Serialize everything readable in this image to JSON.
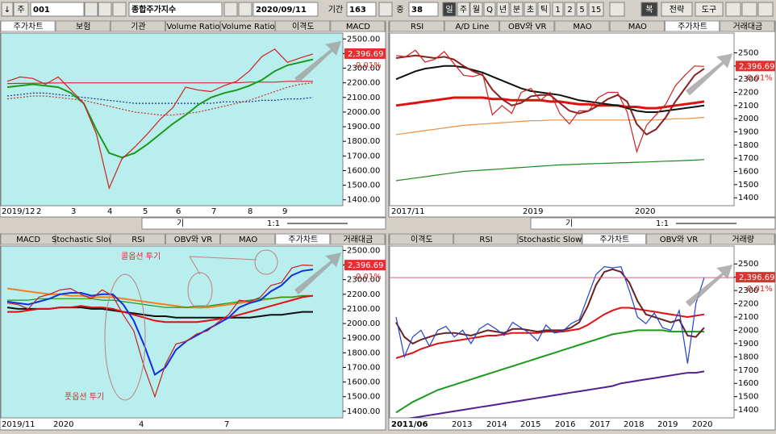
{
  "toolbar": {
    "items": [
      "↓",
      "주",
      "001",
      "종합주가지수",
      "2020/09/11",
      "기간",
      163,
      "중",
      38,
      "일",
      "주",
      "월",
      "Q",
      "년",
      "분",
      "초",
      "틱",
      "1",
      "2",
      "5",
      "15",
      "복",
      "전략",
      "도구"
    ]
  },
  "scroll": {
    "label": "기",
    "zoom": "1:1"
  },
  "panels": [
    {
      "tabs": [
        "주가차트",
        "보험",
        "기관",
        "Volume Ratio",
        "Volume Ratio",
        "이격도",
        "MACD"
      ],
      "ylim": [
        1360,
        2540
      ],
      "yticks": [
        {
          "value": 2500,
          "label": "2500.00"
        },
        {
          "value": 2400,
          "label": "2400.00"
        },
        {
          "value": 2300,
          "label": "2300.00"
        },
        {
          "value": 2200,
          "label": "2200.00"
        },
        {
          "value": 2100,
          "label": "2100.00"
        },
        {
          "value": 2000,
          "label": "2000.00"
        },
        {
          "value": 1900,
          "label": "1900.00"
        },
        {
          "value": 1800,
          "label": "1800.00"
        },
        {
          "value": 1700,
          "label": "1700.00"
        },
        {
          "value": 1600,
          "label": "1600.00"
        },
        {
          "value": 1500,
          "label": "1500.00"
        },
        {
          "value": 1400,
          "label": "1400.00"
        }
      ],
      "xlabels": [
        "2019/12",
        "2",
        "3",
        "4",
        "5",
        "6",
        "7",
        "8",
        "9"
      ],
      "price_label": "2,396.69",
      "change_label": "0.01%",
      "lines": [
        {
          "color": "#e02020",
          "values": [
            2195,
            2196,
            2197,
            2198,
            2199,
            2200,
            2200,
            2200,
            2200,
            2200,
            2200,
            2200,
            2200,
            2200,
            2200,
            2200,
            2200,
            2200,
            2200,
            2205,
            2205,
            2205,
            2210,
            2210,
            2210
          ]
        },
        {
          "color": "#203090",
          "dotted": true,
          "values": [
            2110,
            2120,
            2130,
            2130,
            2120,
            2110,
            2100,
            2090,
            2080,
            2070,
            2060,
            2060,
            2060,
            2060,
            2060,
            2060,
            2060,
            2070,
            2070,
            2070,
            2080,
            2080,
            2090,
            2090,
            2100
          ]
        },
        {
          "color": "#c03030",
          "dotted": true,
          "values": [
            2090,
            2100,
            2110,
            2110,
            2100,
            2090,
            2080,
            2060,
            2040,
            2020,
            2000,
            1990,
            1980,
            1980,
            1990,
            2000,
            2020,
            2040,
            2060,
            2080,
            2110,
            2140,
            2170,
            2190,
            2200
          ]
        },
        {
          "color": "#1a9a1a",
          "width": 2,
          "values": [
            2170,
            2180,
            2190,
            2180,
            2170,
            2130,
            2060,
            1880,
            1720,
            1690,
            1720,
            1780,
            1850,
            1920,
            1980,
            2050,
            2100,
            2130,
            2150,
            2180,
            2220,
            2280,
            2320,
            2340,
            2360
          ]
        },
        {
          "color": "#d02020",
          "values": [
            2210,
            2240,
            2230,
            2190,
            2240,
            2150,
            2060,
            1850,
            1480,
            1680,
            1760,
            1850,
            1950,
            2030,
            2170,
            2150,
            2140,
            2180,
            2210,
            2280,
            2380,
            2430,
            2340,
            2370,
            2397
          ]
        }
      ]
    },
    {
      "tabs": [
        "RSI",
        "A/D Line",
        "OBV와 VR",
        "MAO",
        "MAO",
        "주가차트",
        "거래대금"
      ],
      "ylim": [
        1340,
        2650
      ],
      "yticks": [
        2500,
        2400,
        2300,
        2200,
        2100,
        2000,
        1900,
        1800,
        1700,
        1600,
        1500,
        1400
      ],
      "xlabels": [
        "2017/11",
        "2019",
        "2020"
      ],
      "price_label": "2,396.69",
      "change_label": "0.01%",
      "lines": [
        {
          "color": "#1a8a1a",
          "values": [
            1530,
            1540,
            1550,
            1560,
            1570,
            1580,
            1590,
            1600,
            1605,
            1610,
            1615,
            1620,
            1625,
            1630,
            1635,
            1640,
            1645,
            1650,
            1652,
            1655,
            1658,
            1660,
            1662,
            1665,
            1667,
            1670,
            1672,
            1675,
            1678,
            1680,
            1683,
            1686,
            1690
          ]
        },
        {
          "color": "#f09040",
          "values": [
            1880,
            1890,
            1900,
            1910,
            1920,
            1930,
            1940,
            1950,
            1955,
            1960,
            1965,
            1970,
            1975,
            1980,
            1985,
            1985,
            1990,
            1990,
            1990,
            1990,
            1990,
            1990,
            1990,
            1990,
            1990,
            1990,
            1990,
            1990,
            1995,
            2000,
            2000,
            2005,
            2010
          ]
        },
        {
          "color": "#e01010",
          "width": 3,
          "values": [
            2100,
            2110,
            2120,
            2130,
            2140,
            2150,
            2160,
            2160,
            2160,
            2160,
            2150,
            2150,
            2140,
            2140,
            2140,
            2140,
            2130,
            2130,
            2120,
            2110,
            2110,
            2100,
            2100,
            2100,
            2090,
            2090,
            2080,
            2080,
            2090,
            2100,
            2110,
            2120,
            2130
          ]
        },
        {
          "color": "#101010",
          "width": 2,
          "values": [
            2300,
            2330,
            2360,
            2380,
            2390,
            2400,
            2400,
            2390,
            2370,
            2350,
            2320,
            2290,
            2260,
            2230,
            2210,
            2200,
            2190,
            2180,
            2160,
            2140,
            2130,
            2120,
            2110,
            2100,
            2080,
            2060,
            2050,
            2050,
            2060,
            2070,
            2080,
            2090,
            2100
          ]
        },
        {
          "color": "#8a2020",
          "width": 2,
          "values": [
            2460,
            2470,
            2480,
            2470,
            2460,
            2470,
            2450,
            2400,
            2360,
            2330,
            2220,
            2150,
            2100,
            2120,
            2170,
            2180,
            2180,
            2120,
            2060,
            2040,
            2060,
            2100,
            2150,
            2180,
            2130,
            1960,
            1880,
            1920,
            2010,
            2130,
            2230,
            2330,
            2380
          ]
        },
        {
          "color": "#d02020",
          "values": [
            2480,
            2470,
            2520,
            2430,
            2450,
            2510,
            2420,
            2330,
            2320,
            2340,
            2030,
            2100,
            2040,
            2200,
            2230,
            2140,
            2200,
            2040,
            1960,
            2060,
            2060,
            2160,
            2200,
            2200,
            2050,
            1750,
            1950,
            2030,
            2110,
            2250,
            2330,
            2400,
            2397
          ]
        }
      ]
    },
    {
      "tabs": [
        "MACD",
        "Stochastic Slow",
        "RSI",
        "OBV와 VR",
        "MAO",
        "주가차트",
        "거래대금"
      ],
      "ylim": [
        1355,
        2530
      ],
      "yticks": [
        {
          "value": 2500,
          "label": "2500.00"
        },
        {
          "value": 2400,
          "label": "2400.00"
        },
        {
          "value": 2300,
          "label": "2300.00"
        },
        {
          "value": 2200,
          "label": "2200.00"
        },
        {
          "value": 2100,
          "label": "2100.00"
        },
        {
          "value": 2000,
          "label": "2000.00"
        },
        {
          "value": 1900,
          "label": "1900.00"
        },
        {
          "value": 1800,
          "label": "1800.00"
        },
        {
          "value": 1700,
          "label": "1700.00"
        },
        {
          "value": 1600,
          "label": "1600.00"
        },
        {
          "value": 1500,
          "label": "1500.00"
        },
        {
          "value": 1400,
          "label": "1400.00"
        }
      ],
      "xlabels": [
        "2019/11",
        "2020",
        "4",
        "7"
      ],
      "price_label": "2,396.69",
      "change_label": "0.01%",
      "annotations": [
        "콜옵션 투기",
        "풋옵션 투기"
      ],
      "lines": [
        {
          "color": "#f08020",
          "width": 2,
          "values": [
            2240,
            2230,
            2220,
            2210,
            2200,
            2200,
            2190,
            2190,
            2180,
            2180,
            2180,
            2170,
            2160,
            2150,
            2140,
            2130,
            2120,
            2110,
            2110,
            2110,
            2120,
            2130,
            2140,
            2150,
            2160,
            2170,
            2180,
            2180,
            2190,
            2190
          ]
        },
        {
          "color": "#1a9a1a",
          "values": [
            2160,
            2160,
            2160,
            2170,
            2170,
            2170,
            2170,
            2170,
            2170,
            2160,
            2160,
            2150,
            2140,
            2130,
            2120,
            2110,
            2110,
            2110,
            2120,
            2120,
            2130,
            2140,
            2150,
            2160,
            2170,
            2170,
            2180,
            2180,
            2190,
            2190
          ]
        },
        {
          "color": "#101010",
          "width": 2,
          "values": [
            2110,
            2100,
            2100,
            2100,
            2100,
            2110,
            2110,
            2110,
            2100,
            2100,
            2090,
            2080,
            2070,
            2060,
            2050,
            2050,
            2040,
            2040,
            2040,
            2040,
            2040,
            2040,
            2040,
            2040,
            2050,
            2060,
            2060,
            2070,
            2080,
            2080
          ]
        },
        {
          "color": "#e01010",
          "width": 2,
          "values": [
            2080,
            2080,
            2090,
            2100,
            2100,
            2110,
            2110,
            2120,
            2110,
            2110,
            2100,
            2080,
            2060,
            2040,
            2020,
            2010,
            2010,
            2010,
            2010,
            2020,
            2030,
            2040,
            2060,
            2080,
            2100,
            2120,
            2140,
            2160,
            2180,
            2190
          ]
        },
        {
          "color": "#1030e0",
          "width": 2,
          "values": [
            2150,
            2140,
            2130,
            2150,
            2170,
            2200,
            2210,
            2210,
            2190,
            2200,
            2200,
            2130,
            2020,
            1850,
            1650,
            1700,
            1820,
            1880,
            1920,
            1960,
            2000,
            2040,
            2110,
            2140,
            2160,
            2220,
            2260,
            2330,
            2360,
            2370
          ]
        },
        {
          "color": "#c02020",
          "values": [
            2140,
            2130,
            2100,
            2180,
            2200,
            2230,
            2240,
            2200,
            2170,
            2230,
            2190,
            2060,
            1950,
            1700,
            1500,
            1720,
            1860,
            1880,
            1930,
            1950,
            2010,
            2060,
            2160,
            2150,
            2180,
            2260,
            2280,
            2380,
            2400,
            2397
          ]
        }
      ]
    },
    {
      "tabs": [
        "이격도",
        "RSI",
        "Stochastic Slow",
        "주가차트",
        "OBV와 VR",
        "거래량"
      ],
      "ylim": [
        1340,
        2635
      ],
      "yticks": [
        2500,
        2400,
        2300,
        2200,
        2100,
        2000,
        1900,
        1800,
        1700,
        1600,
        1500,
        1400
      ],
      "xlabels": [
        "2011/06",
        "2013",
        "2014",
        "2015",
        "2016",
        "2017",
        "2018",
        "2019",
        "2020"
      ],
      "price_label": "2,396.69",
      "change_label": "0.01%",
      "lines": [
        {
          "color": "#502090",
          "width": 2,
          "values": [
            1320,
            1330,
            1340,
            1350,
            1360,
            1370,
            1380,
            1390,
            1400,
            1410,
            1420,
            1430,
            1440,
            1450,
            1460,
            1470,
            1480,
            1490,
            1500,
            1510,
            1520,
            1530,
            1540,
            1550,
            1560,
            1570,
            1580,
            1600,
            1610,
            1620,
            1630,
            1640,
            1650,
            1660,
            1670,
            1680,
            1680,
            1690
          ]
        },
        {
          "color": "#1a9a1a",
          "width": 2,
          "values": [
            1380,
            1420,
            1460,
            1490,
            1520,
            1550,
            1570,
            1590,
            1610,
            1630,
            1650,
            1670,
            1690,
            1710,
            1730,
            1750,
            1770,
            1790,
            1810,
            1830,
            1850,
            1870,
            1890,
            1910,
            1930,
            1950,
            1970,
            1980,
            1990,
            2000,
            2000,
            2000,
            2000,
            1990,
            1990,
            1990,
            1990,
            1990
          ]
        },
        {
          "color": "#e01010",
          "width": 2,
          "values": [
            1790,
            1810,
            1830,
            1860,
            1880,
            1900,
            1910,
            1920,
            1930,
            1940,
            1950,
            1960,
            1960,
            1970,
            1980,
            1980,
            1980,
            1980,
            1990,
            1990,
            1990,
            2000,
            2010,
            2040,
            2080,
            2120,
            2150,
            2170,
            2170,
            2160,
            2150,
            2140,
            2130,
            2120,
            2110,
            2100,
            2110,
            2120
          ]
        },
        {
          "color": "#6a2020",
          "width": 2,
          "values": [
            2060,
            1950,
            1900,
            1930,
            1950,
            1970,
            1980,
            1980,
            1970,
            1960,
            1980,
            2000,
            1990,
            1980,
            2010,
            2010,
            2000,
            1990,
            2000,
            2000,
            2000,
            2020,
            2060,
            2180,
            2340,
            2440,
            2460,
            2440,
            2360,
            2220,
            2120,
            2100,
            2080,
            2060,
            2080,
            1960,
            1950,
            2020
          ]
        },
        {
          "color": "#2040d0",
          "values": [
            2100,
            1800,
            1950,
            2000,
            1880,
            2000,
            2030,
            1950,
            2000,
            1900,
            2010,
            2050,
            2010,
            1960,
            2060,
            2020,
            1980,
            1920,
            2040,
            1980,
            1990,
            2050,
            2080,
            2250,
            2420,
            2480,
            2470,
            2480,
            2300,
            2100,
            2050,
            2130,
            2020,
            2000,
            2150,
            1750,
            2200,
            2397
          ]
        }
      ]
    }
  ]
}
